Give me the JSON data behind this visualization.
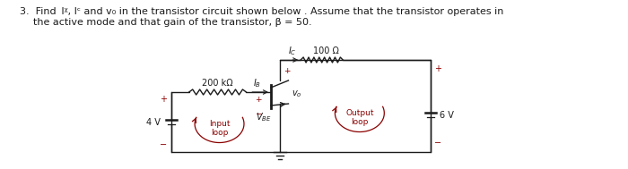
{
  "title_line1": "3.  Find  IB, IC and v₀ in the transistor circuit shown below . Assume that the transistor operates in",
  "title_line2": "    the active mode and that gain of the transistor, β = 50.",
  "bg_color": "#ffffff",
  "circuit_color": "#1a1a1a",
  "loop_color": "#8B0000",
  "text_color": "#1a1a1a",
  "resistor_top_label": "100 Ω",
  "resistor_left_label": "200 kΩ",
  "v_left": "4 V",
  "v_right": "6 V",
  "input_loop": "Input\nloop",
  "output_loop": "Output\nloop"
}
